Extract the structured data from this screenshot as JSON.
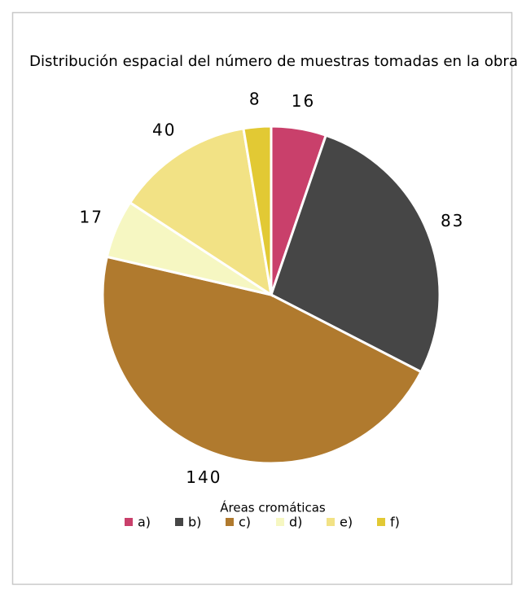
{
  "chart_data": {
    "type": "pie",
    "title": "Distribución espacial del número de muestras tomadas en la obra",
    "legend_title": "Áreas cromáticas",
    "categories": [
      "a)",
      "b)",
      "c)",
      "d)",
      "e)",
      "f)"
    ],
    "values": [
      16,
      83,
      140,
      17,
      40,
      8
    ],
    "colors": [
      "#c9406b",
      "#464646",
      "#b07a2e",
      "#f6f7c2",
      "#f2e285",
      "#e2c934"
    ],
    "legend": "bottom"
  }
}
